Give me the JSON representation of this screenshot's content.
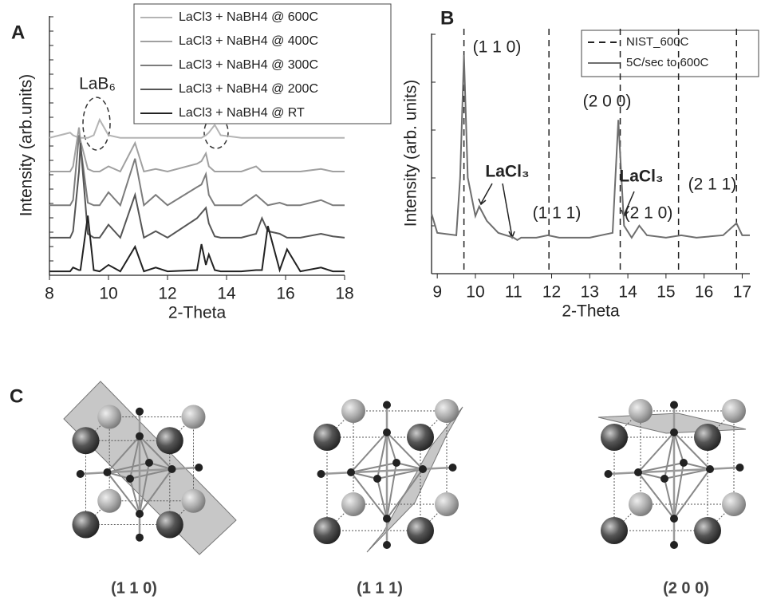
{
  "chart_data": [
    {
      "type": "line",
      "panel_label": "A",
      "xlabel": "2-Theta",
      "ylabel": "Intensity (arb.units)",
      "xlim": [
        8,
        18
      ],
      "xticks": [
        8,
        10,
        12,
        14,
        16,
        18
      ],
      "ylim": [
        0,
        100
      ],
      "x": [
        8,
        8.7,
        8.8,
        9.0,
        9.05,
        9.3,
        9.5,
        9.7,
        10.0,
        10.4,
        10.9,
        11.2,
        11.6,
        12.0,
        13.0,
        13.15,
        13.3,
        13.4,
        13.6,
        13.8,
        14.5,
        15.0,
        15.2,
        15.4,
        15.8,
        16.05,
        16.5,
        17.2,
        17.6,
        18
      ],
      "series": [
        {
          "name": "LaCl3 + NaBH4 @ 600C",
          "color": "#b4b4b4",
          "values": [
            53,
            55,
            54,
            53,
            53,
            53,
            54,
            60,
            54,
            53,
            53,
            53,
            53,
            53,
            53,
            53,
            54,
            55,
            58,
            54,
            53,
            53,
            53,
            53,
            53,
            53,
            53,
            53,
            53,
            53
          ]
        },
        {
          "name": "LaCl3 + NaBH4 @ 400C",
          "color": "#a0a0a0",
          "values": [
            40,
            40,
            42,
            57,
            52,
            41,
            40,
            40,
            42,
            40,
            51,
            40,
            41,
            40,
            43,
            44,
            47,
            42,
            40,
            40,
            40,
            42,
            40,
            40,
            40,
            40,
            40,
            41,
            40,
            40
          ]
        },
        {
          "name": "LaCl3 + NaBH4 @ 300C",
          "color": "#7c7c7c",
          "values": [
            27,
            27,
            29,
            54,
            50,
            28,
            27,
            27,
            32,
            27,
            45,
            27,
            31,
            27,
            34,
            35,
            39,
            31,
            27,
            27,
            27,
            31,
            29,
            27,
            28,
            27,
            27,
            29,
            27,
            27
          ]
        },
        {
          "name": "LaCl3 + NaBH4 @ 200C",
          "color": "#555555",
          "values": [
            14.5,
            14.5,
            17,
            40,
            51,
            16,
            14.5,
            14.5,
            19.5,
            14.5,
            31,
            14.5,
            17,
            14.5,
            22,
            24,
            26,
            20,
            15,
            14.5,
            14.5,
            16,
            22,
            17,
            16,
            14.5,
            14.5,
            16,
            15,
            14.5
          ]
        },
        {
          "name": "LaCl3 + NaBH4 @ RT",
          "color": "#222222",
          "values": [
            1.5,
            1.5,
            3,
            2,
            2,
            23,
            2,
            1.5,
            4,
            1.5,
            11,
            1.5,
            3,
            1.5,
            2,
            12,
            4,
            8,
            2,
            1.5,
            1.5,
            2,
            2,
            19,
            2,
            10,
            1.5,
            3,
            1.5,
            1.5
          ]
        }
      ],
      "annotations": [
        "LaB₆"
      ]
    },
    {
      "type": "line",
      "panel_label": "B",
      "xlabel": "2-Theta",
      "ylabel": "Intensity (arb. units)",
      "xlim": [
        8.85,
        17.2
      ],
      "xticks": [
        9,
        10,
        11,
        12,
        13,
        14,
        15,
        16,
        17
      ],
      "ylim": [
        0,
        100
      ],
      "x": [
        8.85,
        9.0,
        9.5,
        9.6,
        9.7,
        9.8,
        10.0,
        10.1,
        10.3,
        10.6,
        11.0,
        11.1,
        11.2,
        11.6,
        11.9,
        12.2,
        13.0,
        13.6,
        13.75,
        13.9,
        14.1,
        14.3,
        14.5,
        15.0,
        15.4,
        15.8,
        16.5,
        16.85,
        17.0,
        17.2
      ],
      "series": [
        {
          "name": "NIST_600C",
          "color": "#222222",
          "style": "dashed",
          "x": [
            9.7,
            11.93,
            13.8,
            15.33,
            16.85
          ]
        },
        {
          "name": "5C/sec to 600C",
          "color": "#6e6e6e",
          "values": [
            25,
            17,
            16,
            40,
            91,
            40,
            24,
            28,
            22,
            17,
            15,
            14,
            15,
            15,
            16,
            15,
            15,
            17,
            64,
            20,
            15,
            20,
            16,
            15,
            16,
            15,
            16,
            21,
            16,
            16
          ]
        }
      ],
      "annotations": [
        "(1 1 0)",
        "(1 1 1)",
        "(2 0 0)",
        "(2 1 0)",
        "(2 1 1)",
        "LaCl₃",
        "LaCl₃"
      ]
    }
  ],
  "panel_c": {
    "label": "C",
    "captions": [
      "(1 1 0)",
      "(1 1 1)",
      "(2 0 0)"
    ]
  }
}
